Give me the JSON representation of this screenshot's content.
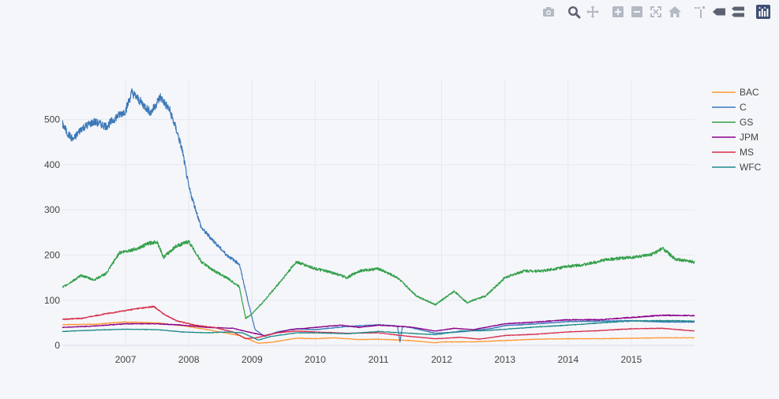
{
  "modebar": {
    "buttons": [
      {
        "name": "download-plot-button",
        "icon": "camera-icon"
      },
      {
        "name": "zoom-button",
        "icon": "magnifier-icon"
      },
      {
        "name": "pan-button",
        "icon": "move-arrows-icon"
      },
      {
        "name": "zoom-in-button",
        "icon": "plus-square-icon"
      },
      {
        "name": "zoom-out-button",
        "icon": "minus-square-icon"
      },
      {
        "name": "autoscale-button",
        "icon": "autoscale-icon"
      },
      {
        "name": "reset-axes-button",
        "icon": "home-icon"
      },
      {
        "name": "toggle-spike-lines-button",
        "icon": "spike-icon"
      },
      {
        "name": "hover-closest-button",
        "icon": "hover-closest-icon"
      },
      {
        "name": "hover-compare-button",
        "icon": "hover-compare-icon"
      },
      {
        "name": "plotly-logo-button",
        "icon": "plotly-logo-icon"
      }
    ]
  },
  "chart_data": {
    "type": "line",
    "title": "",
    "xlabel": "",
    "ylabel": "",
    "xlim": [
      2006.0,
      2016.0
    ],
    "ylim": [
      -5,
      590
    ],
    "x_ticks": [
      "2007",
      "2008",
      "2009",
      "2010",
      "2011",
      "2012",
      "2013",
      "2014",
      "2015"
    ],
    "y_ticks": [
      "0",
      "100",
      "200",
      "300",
      "400",
      "500"
    ],
    "grid": true,
    "legend_position": "right",
    "series": [
      {
        "name": "BAC",
        "color": "#ff9933",
        "x": [
          2006.0,
          2006.5,
          2007.0,
          2007.5,
          2007.9,
          2008.3,
          2008.8,
          2009.1,
          2009.3,
          2009.7,
          2010.0,
          2010.3,
          2010.7,
          2011.0,
          2011.5,
          2011.9,
          2012.0,
          2012.5,
          2013.0,
          2013.5,
          2014.0,
          2014.5,
          2015.0,
          2015.5,
          2016.0
        ],
        "y": [
          46,
          47,
          52,
          50,
          44,
          35,
          22,
          5,
          7,
          16,
          15,
          17,
          13,
          14,
          11,
          6,
          8,
          8,
          11,
          14,
          15,
          15,
          16,
          17,
          17
        ]
      },
      {
        "name": "C",
        "color": "#3b78b8",
        "x": [
          2006.0,
          2006.08,
          2006.17,
          2006.3,
          2006.5,
          2006.7,
          2006.85,
          2007.0,
          2007.1,
          2007.2,
          2007.4,
          2007.55,
          2007.7,
          2007.82,
          2007.9,
          2008.0,
          2008.2,
          2008.4,
          2008.6,
          2008.8,
          2008.95,
          2009.05,
          2009.2,
          2009.4,
          2009.7,
          2010.0,
          2010.5,
          2011.0,
          2011.3,
          2011.34,
          2011.38,
          2011.5,
          2011.9,
          2012.3,
          2012.8,
          2013.0,
          2013.5,
          2014.0,
          2014.5,
          2015.0,
          2015.5,
          2016.0
        ],
        "y": [
          490,
          470,
          455,
          480,
          495,
          485,
          505,
          520,
          560,
          545,
          515,
          550,
          520,
          470,
          430,
          350,
          260,
          230,
          200,
          180,
          90,
          35,
          20,
          30,
          37,
          35,
          42,
          46,
          43,
          8,
          42,
          40,
          27,
          30,
          38,
          44,
          48,
          53,
          54,
          55,
          52,
          52
        ]
      },
      {
        "name": "GS",
        "color": "#33a04a",
        "x": [
          2006.0,
          2006.3,
          2006.5,
          2006.7,
          2006.9,
          2007.2,
          2007.35,
          2007.5,
          2007.6,
          2007.8,
          2008.0,
          2008.2,
          2008.4,
          2008.6,
          2008.8,
          2008.9,
          2009.0,
          2009.2,
          2009.5,
          2009.7,
          2010.0,
          2010.3,
          2010.5,
          2010.7,
          2011.0,
          2011.3,
          2011.6,
          2011.9,
          2012.2,
          2012.4,
          2012.7,
          2013.0,
          2013.3,
          2013.6,
          2014.0,
          2014.3,
          2014.6,
          2015.0,
          2015.3,
          2015.5,
          2015.7,
          2016.0
        ],
        "y": [
          128,
          155,
          145,
          160,
          205,
          215,
          225,
          230,
          195,
          220,
          230,
          185,
          165,
          150,
          130,
          60,
          70,
          100,
          150,
          185,
          170,
          160,
          150,
          165,
          170,
          150,
          110,
          90,
          120,
          95,
          110,
          150,
          165,
          165,
          175,
          180,
          190,
          195,
          200,
          215,
          190,
          185
        ]
      },
      {
        "name": "JPM",
        "color": "#8b008b",
        "x": [
          2006.0,
          2006.5,
          2007.0,
          2007.5,
          2007.9,
          2008.3,
          2008.7,
          2009.0,
          2009.2,
          2009.6,
          2010.0,
          2010.4,
          2010.7,
          2011.0,
          2011.5,
          2011.9,
          2012.2,
          2012.5,
          2013.0,
          2013.5,
          2014.0,
          2014.5,
          2015.0,
          2015.5,
          2016.0
        ],
        "y": [
          40,
          43,
          48,
          48,
          45,
          40,
          38,
          28,
          22,
          35,
          40,
          45,
          40,
          45,
          41,
          32,
          38,
          35,
          48,
          52,
          57,
          57,
          62,
          67,
          66
        ]
      },
      {
        "name": "MS",
        "color": "#d62d4a",
        "x": [
          2006.0,
          2006.3,
          2006.6,
          2006.9,
          2007.2,
          2007.45,
          2007.6,
          2007.8,
          2008.1,
          2008.4,
          2008.7,
          2008.9,
          2009.1,
          2009.4,
          2009.7,
          2010.0,
          2010.5,
          2011.0,
          2011.5,
          2011.9,
          2012.3,
          2012.6,
          2013.0,
          2013.5,
          2014.0,
          2014.5,
          2015.0,
          2015.5,
          2016.0
        ],
        "y": [
          58,
          60,
          68,
          75,
          82,
          86,
          70,
          55,
          45,
          40,
          30,
          15,
          18,
          28,
          32,
          30,
          27,
          28,
          20,
          15,
          18,
          14,
          22,
          25,
          30,
          33,
          37,
          38,
          32
        ]
      },
      {
        "name": "WFC",
        "color": "#1f8a8a",
        "x": [
          2006.0,
          2006.5,
          2007.0,
          2007.5,
          2007.9,
          2008.3,
          2008.6,
          2008.85,
          2009.1,
          2009.3,
          2009.7,
          2010.0,
          2010.5,
          2011.0,
          2011.5,
          2011.9,
          2012.3,
          2012.7,
          2013.0,
          2013.5,
          2014.0,
          2014.5,
          2015.0,
          2015.5,
          2016.0
        ],
        "y": [
          31,
          34,
          36,
          35,
          30,
          28,
          30,
          28,
          12,
          20,
          28,
          28,
          26,
          31,
          27,
          24,
          32,
          33,
          36,
          41,
          45,
          50,
          54,
          55,
          54
        ]
      }
    ]
  }
}
